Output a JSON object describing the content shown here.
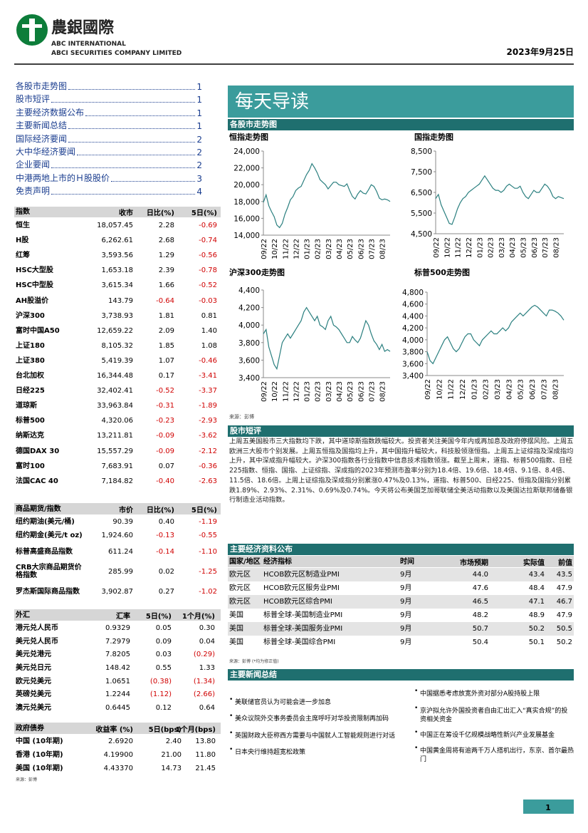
{
  "header": {
    "company_cn": "農銀國際",
    "company_en": "ABC INTERNATIONAL",
    "company_full": "ABCI SECURITIES COMPANY LIMITED",
    "date": "2023年9月25日"
  },
  "toc": [
    {
      "label": "各股市走势图",
      "page": "1"
    },
    {
      "label": "股市短评",
      "page": "1"
    },
    {
      "label": "主要经济数据公布",
      "page": "1"
    },
    {
      "label": "主要新闻总结",
      "page": "1"
    },
    {
      "label": "国际经济要闻",
      "page": "2"
    },
    {
      "label": "大中华经济要闻",
      "page": "2"
    },
    {
      "label": "企业要闻",
      "page": "2"
    },
    {
      "label": "中港两地上市的Ｈ股股价",
      "page": "3"
    },
    {
      "label": "免责声明",
      "page": "4"
    }
  ],
  "title": "每天导读",
  "market_charts": {
    "heading": "各股市走势图",
    "source": "来源：彭博",
    "charts": [
      {
        "type": "line",
        "title": "恒指走势图",
        "color": "#2a7f7f",
        "categories": [
          "09/22",
          null,
          null,
          null,
          "10/22",
          null,
          null,
          null,
          "11/22",
          null,
          null,
          null,
          "12/22",
          null,
          null,
          null,
          "01/23",
          null,
          null,
          null,
          "02/23",
          null,
          null,
          null,
          "03/23",
          null,
          null,
          null,
          "04/23",
          null,
          null,
          null,
          "05/23",
          null,
          null,
          null,
          "06/23",
          null,
          null,
          null,
          "07/23",
          null,
          null,
          null,
          "08/23",
          null,
          null,
          null
        ],
        "values": [
          17900,
          18800,
          17500,
          16800,
          16200,
          15200,
          14900,
          15400,
          16500,
          17300,
          18200,
          18600,
          19300,
          19600,
          19800,
          20500,
          21200,
          21700,
          22500,
          22000,
          21400,
          20600,
          20300,
          20000,
          19500,
          19900,
          20300,
          20300,
          20000,
          19900,
          19800,
          20100,
          19300,
          18600,
          18300,
          18900,
          19300,
          19000,
          18900,
          19400,
          20000,
          19800,
          19200,
          18400,
          18200,
          18300,
          18200,
          18000
        ],
        "ylim": [
          14000,
          24000
        ],
        "yticks": [
          {
            "value": 14000,
            "label": "14,000"
          },
          {
            "value": 16000,
            "label": "16,000"
          },
          {
            "value": 18000,
            "label": "18,000"
          },
          {
            "value": 20000,
            "label": "20,000"
          },
          {
            "value": 22000,
            "label": "22,000"
          },
          {
            "value": 24000,
            "label": "24,000"
          }
        ]
      },
      {
        "type": "line",
        "title": "国指走势图",
        "color": "#2a7f7f",
        "categories": [
          "09/22",
          null,
          null,
          null,
          "10/22",
          null,
          null,
          null,
          "11/22",
          null,
          null,
          null,
          "12/22",
          null,
          null,
          null,
          "01/23",
          null,
          null,
          null,
          "02/23",
          null,
          null,
          null,
          "03/23",
          null,
          null,
          null,
          "04/23",
          null,
          null,
          null,
          "05/23",
          null,
          null,
          null,
          "06/23",
          null,
          null,
          null,
          "07/23",
          null,
          null,
          null,
          "08/23",
          null,
          null,
          null
        ],
        "values": [
          6200,
          6400,
          5900,
          5600,
          5300,
          5000,
          4950,
          5300,
          5700,
          6000,
          6200,
          6300,
          6500,
          6600,
          6700,
          6800,
          6900,
          7100,
          7300,
          7100,
          6900,
          6700,
          6600,
          6600,
          6500,
          6600,
          6800,
          6900,
          6800,
          6700,
          6700,
          6800,
          6500,
          6300,
          6200,
          6400,
          6600,
          6500,
          6500,
          6700,
          6900,
          6800,
          6600,
          6300,
          6200,
          6300,
          6250,
          6200
        ],
        "ylim": [
          4500,
          8500
        ],
        "yticks": [
          {
            "value": 4500,
            "label": "4,500"
          },
          {
            "value": 5500,
            "label": "5,500"
          },
          {
            "value": 6500,
            "label": "6,500"
          },
          {
            "value": 7500,
            "label": "7,500"
          },
          {
            "value": 8500,
            "label": "8,500"
          }
        ]
      },
      {
        "type": "line",
        "title": "沪深300走势图",
        "color": "#2a7f7f",
        "categories": [
          "09/22",
          null,
          null,
          null,
          "10/22",
          null,
          null,
          null,
          "11/22",
          null,
          null,
          null,
          "12/22",
          null,
          null,
          null,
          "01/23",
          null,
          null,
          null,
          "02/23",
          null,
          null,
          null,
          "03/23",
          null,
          null,
          null,
          "04/23",
          null,
          null,
          null,
          "05/23",
          null,
          null,
          null,
          "06/23",
          null,
          null,
          null,
          "07/23",
          null,
          null,
          null,
          "08/23",
          null,
          null,
          null
        ],
        "values": [
          3900,
          3950,
          3750,
          3650,
          3550,
          3500,
          3650,
          3800,
          3850,
          3900,
          3850,
          3900,
          3950,
          4000,
          4050,
          4150,
          4200,
          4150,
          4100,
          4050,
          4100,
          4000,
          3980,
          3950,
          4050,
          4100,
          4000,
          3980,
          3950,
          3900,
          3850,
          3800,
          3800,
          3870,
          3830,
          3800,
          3850,
          3950,
          4050,
          4000,
          3900,
          3820,
          3780,
          3720,
          3780,
          3700,
          3720,
          3700
        ],
        "ylim": [
          3400,
          4400
        ],
        "yticks": [
          {
            "value": 3400,
            "label": "3,400"
          },
          {
            "value": 3600,
            "label": "3,600"
          },
          {
            "value": 3800,
            "label": "3,800"
          },
          {
            "value": 4000,
            "label": "4,000"
          },
          {
            "value": 4200,
            "label": "4,200"
          },
          {
            "value": 4400,
            "label": "4,400"
          }
        ]
      },
      {
        "type": "line",
        "title": "标普500走势图",
        "color": "#2a7f7f",
        "categories": [
          "09/22",
          null,
          null,
          null,
          "10/22",
          null,
          null,
          null,
          "11/22",
          null,
          null,
          null,
          "12/22",
          null,
          null,
          null,
          "01/23",
          null,
          null,
          null,
          "02/23",
          null,
          null,
          null,
          "03/23",
          null,
          null,
          null,
          "04/23",
          null,
          null,
          null,
          "05/23",
          null,
          null,
          null,
          "06/23",
          null,
          null,
          null,
          "07/23",
          null,
          null,
          null,
          "08/23",
          null,
          null,
          null
        ],
        "values": [
          3800,
          3650,
          3600,
          3700,
          3800,
          3900,
          4000,
          4050,
          3950,
          3850,
          3800,
          3850,
          3950,
          4050,
          4100,
          4100,
          4000,
          3950,
          3900,
          4000,
          4050,
          4100,
          4150,
          4100,
          4100,
          4150,
          4200,
          4150,
          4200,
          4300,
          4350,
          4400,
          4450,
          4400,
          4450,
          4500,
          4550,
          4580,
          4550,
          4500,
          4450,
          4400,
          4500,
          4500,
          4480,
          4450,
          4400,
          4330
        ],
        "ylim": [
          3400,
          4800
        ],
        "yticks": [
          {
            "value": 3400,
            "label": "3,400"
          },
          {
            "value": 3600,
            "label": "3,600"
          },
          {
            "value": 3800,
            "label": "3,800"
          },
          {
            "value": 4000,
            "label": "4,000"
          },
          {
            "value": 4200,
            "label": "4,200"
          },
          {
            "value": 4400,
            "label": "4,400"
          },
          {
            "value": 4600,
            "label": "4,600"
          },
          {
            "value": 4800,
            "label": "4,800"
          }
        ]
      }
    ]
  },
  "commentary": {
    "heading": "股市短评",
    "text": "上周五美国股市三大指数均下跌，其中道琼斯指数跌幅较大。投资者关注美国今年内或再加息及政府停摆风险。上周五欧洲三大股市个别发展。上周五恒指及国指均上升，其中国指升幅较大，科技股领涨恒指。上周五上证综指及深成指均上升，其中深成指升幅较大。沪深300指数各行业指数中信息技术指数领涨。截至上周末，道指、标普500指数、日经225指数、恒指、国指、上证综指、深成指的2023年预测市盈率分别为18.4倍、19.6倍、18.4倍、9.1倍、8.4倍、11.5倍、18.6倍。上周上证综指及深成指分别累涨0.47%及0.13%，道指、标普500、日经225、恒指及国指分别累跌1.89%、2.93%、2.31%、0.69%及0.74%。今天将公布美国芝加哥联储全美活动指数以及美国达拉斯联邦储备银行制造业活动指数。"
  },
  "economic_data": {
    "heading": "主要经济资料公布",
    "header": [
      "国家/地区",
      "经济指标",
      "时间",
      "市场预期",
      "实际值",
      "前值"
    ],
    "rows": [
      [
        "欧元区",
        "HCOB欧元区制造业PMI",
        "9月",
        "44.0",
        "43.4",
        "43.5"
      ],
      [
        "欧元区",
        "HCOB欧元区服务业PMI",
        "9月",
        "47.6",
        "48.4",
        "47.9"
      ],
      [
        "欧元区",
        "HCOB欧元区综合PMI",
        "9月",
        "46.5",
        "47.1",
        "46.7"
      ],
      [
        "美国",
        "标普全球-美国制造业PMI",
        "9月",
        "48.2",
        "48.9",
        "47.9"
      ],
      [
        "美国",
        "标普全球-美国服务业PMI",
        "9月",
        "50.7",
        "50.2",
        "50.5"
      ],
      [
        "美国",
        "标普全球-美国综合PMI",
        "9月",
        "50.4",
        "50.1",
        "50.2"
      ]
    ],
    "note": "来源：彭博 (*均为修正值)"
  },
  "news": {
    "heading": "主要新闻总结",
    "left": [
      "美联储官员认为可能会进一步加息",
      "美众议院外交事务委员会主席呼吁对华投资限制再加码",
      "英国财政大臣称西方需要与中国就人工智能规则进行对话",
      "日本央行维持超宽松政策"
    ],
    "right": [
      "中国据悉考虑放宽外资对部分A股持股上限",
      "京沪拟允许外国投资者自由汇出汇入“真实合规”的投资相关资金",
      "中国正在筹设千亿规模战略性新兴产业发展基金",
      "中国黄金周将有逾两千万人搭机出行，东京、首尔最热门"
    ]
  },
  "index_table": {
    "header": [
      "指数",
      "收市",
      "日比(%)",
      "5日(%)"
    ],
    "rows": [
      [
        "恒生",
        "18,057.45",
        "2.28",
        "-0.69"
      ],
      [
        "H股",
        "6,262.61",
        "2.68",
        "-0.74"
      ],
      [
        "红筹",
        "3,593.56",
        "1.29",
        "-0.56"
      ],
      [
        "HSC大型股",
        "1,653.18",
        "2.39",
        "-0.78"
      ],
      [
        "HSC中型股",
        "3,615.34",
        "1.66",
        "-0.52"
      ],
      [
        "AH股溢价",
        "143.79",
        "-0.64",
        "-0.03"
      ],
      [
        "沪深300",
        "3,738.93",
        "1.81",
        "0.81"
      ],
      [
        "富时中国A50",
        "12,659.22",
        "2.09",
        "1.40"
      ],
      [
        "上证180",
        "8,105.32",
        "1.85",
        "1.08"
      ],
      [
        "上证380",
        "5,419.39",
        "1.07",
        "-0.46"
      ],
      [
        "台北加权",
        "16,344.48",
        "0.17",
        "-3.41"
      ],
      [
        "日经225",
        "32,402.41",
        "-0.52",
        "-3.37"
      ],
      [
        "道琼斯",
        "33,963.84",
        "-0.31",
        "-1.89"
      ],
      [
        "标普500",
        "4,320.06",
        "-0.23",
        "-2.93"
      ],
      [
        "纳斯达克",
        "13,211.81",
        "-0.09",
        "-3.62"
      ],
      [
        "德国DAX 30",
        "15,557.29",
        "-0.09",
        "-2.12"
      ],
      [
        "富时100",
        "7,683.91",
        "0.07",
        "-0.36"
      ],
      [
        "法国CAC 40",
        "7,184.82",
        "-0.40",
        "-2.63"
      ]
    ]
  },
  "commodity_table": {
    "header": [
      "商品期货/指数",
      "市价",
      "日比(%)",
      "5日(%)"
    ],
    "rows": [
      [
        "纽约期油(美元/桶)",
        "90.39",
        "0.40",
        "-1.19"
      ],
      [
        "纽约期金(美元/t oz)",
        "1,924.60",
        "-0.13",
        "-0.55"
      ],
      [
        "标普高盛商品指数",
        "611.24",
        "-0.14",
        "-1.10"
      ],
      [
        "CRB大宗商品期货价格指数",
        "285.99",
        "0.02",
        "-1.25"
      ],
      [
        "罗杰斯国际商品指数",
        "3,902.87",
        "0.27",
        "-1.02"
      ]
    ]
  },
  "fx_table": {
    "header": [
      "外汇",
      "汇率",
      "5日(%)",
      "1个月(%)"
    ],
    "rows": [
      [
        "港元兑人民币",
        "0.9329",
        "0.05",
        "0.30"
      ],
      [
        "美元兑人民币",
        "7.2979",
        "0.09",
        "0.04"
      ],
      [
        "美元兑港元",
        "7.8205",
        "0.03",
        "(0.29)"
      ],
      [
        "美元兑日元",
        "148.42",
        "0.55",
        "1.33"
      ],
      [
        "欧元兑美元",
        "1.0651",
        "(0.38)",
        "(1.34)"
      ],
      [
        "英磅兑美元",
        "1.2244",
        "(1.12)",
        "(2.66)"
      ],
      [
        "澳元兑美元",
        "0.6445",
        "0.12",
        "0.64"
      ]
    ]
  },
  "bond_table": {
    "header": [
      "政府债券",
      "收益率 (%)",
      "5日(bps)",
      "1个月(bps)"
    ],
    "rows": [
      [
        "中国 (10年期)",
        "2.6920",
        "2.40",
        "13.80"
      ],
      [
        "香港 (10年期)",
        "4.19900",
        "21.00",
        "11.80"
      ],
      [
        "美国 (10年期)",
        "4.43370",
        "14.73",
        "21.45"
      ]
    ],
    "source": "来源：彭博"
  },
  "page_number": "1"
}
